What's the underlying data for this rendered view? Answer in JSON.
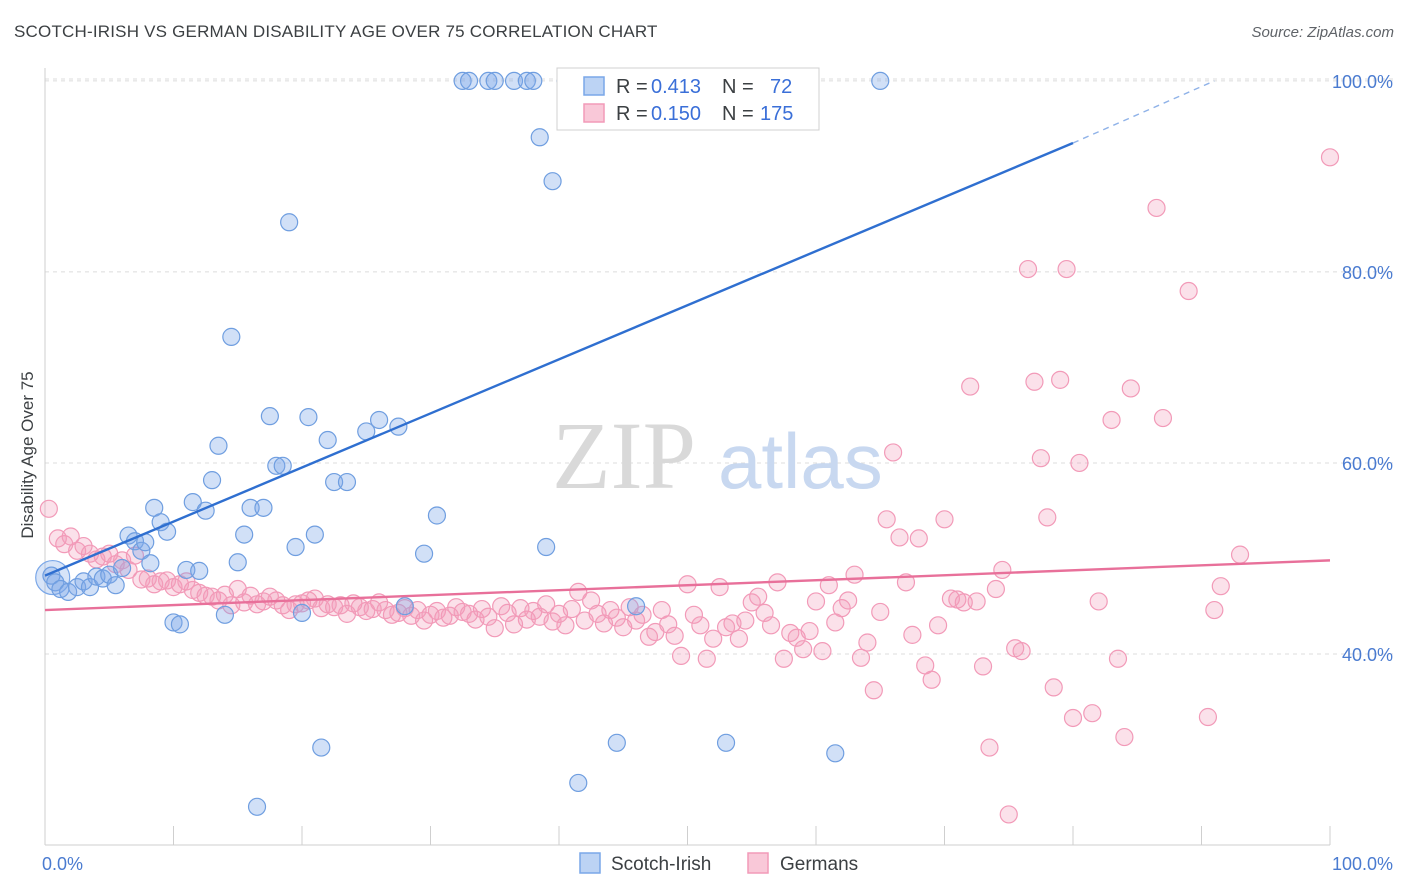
{
  "title": "SCOTCH-IRISH VS GERMAN DISABILITY AGE OVER 75 CORRELATION CHART",
  "source": "Source: ZipAtlas.com",
  "watermark": {
    "zip": "ZIP",
    "atlas": "atlas"
  },
  "colors": {
    "scotch_irish": "#7aa7e8",
    "scotch_irish_line": "#2f6fd0",
    "germans": "#f29ab8",
    "germans_line": "#e8709a",
    "tick": "#4a7bd0"
  },
  "chart_data": {
    "type": "scatter",
    "title": "SCOTCH-IRISH VS GERMAN DISABILITY AGE OVER 75 CORRELATION CHART",
    "xlabel": "",
    "ylabel": "Disability Age Over 75",
    "xlim": [
      0,
      100
    ],
    "ylim": [
      20,
      102
    ],
    "x_tick_labels": [
      "0.0%",
      "100.0%"
    ],
    "y_ticks": [
      40,
      60,
      80,
      100
    ],
    "y_tick_labels": [
      "40.0%",
      "60.0%",
      "80.0%",
      "100.0%"
    ],
    "grid": true,
    "legend_position": "top-center",
    "stats": [
      {
        "r_label": "R =",
        "r": "0.413",
        "n_label": "N =",
        "n": "72"
      },
      {
        "r_label": "R =",
        "r": "0.150",
        "n_label": "N =",
        "n": "175"
      }
    ],
    "series": [
      {
        "name": "Scotch-Irish",
        "trend": {
          "x0": 0,
          "y0": 48.2,
          "x1": 80,
          "y1": 93.5,
          "dash_to_x": 91,
          "dash_to_y": 100
        },
        "points": [
          [
            0.5,
            48.2
          ],
          [
            0.8,
            47.5
          ],
          [
            1.2,
            46.8
          ],
          [
            1.8,
            46.5
          ],
          [
            2.5,
            47.0
          ],
          [
            3.0,
            47.6
          ],
          [
            3.5,
            47.0
          ],
          [
            4.0,
            48.1
          ],
          [
            4.5,
            47.9
          ],
          [
            5.0,
            48.3
          ],
          [
            5.5,
            47.2
          ],
          [
            6.0,
            49.0
          ],
          [
            6.5,
            52.4
          ],
          [
            7.0,
            51.8
          ],
          [
            7.5,
            50.8
          ],
          [
            7.8,
            51.7
          ],
          [
            8.2,
            49.5
          ],
          [
            8.5,
            55.3
          ],
          [
            9.0,
            53.8
          ],
          [
            9.5,
            52.8
          ],
          [
            10.0,
            43.3
          ],
          [
            10.5,
            43.1
          ],
          [
            11.0,
            48.8
          ],
          [
            11.5,
            55.9
          ],
          [
            12.0,
            48.7
          ],
          [
            12.5,
            55.0
          ],
          [
            13.0,
            58.2
          ],
          [
            13.5,
            61.8
          ],
          [
            14.0,
            44.1
          ],
          [
            14.5,
            73.2
          ],
          [
            15.0,
            49.6
          ],
          [
            15.5,
            52.5
          ],
          [
            16.0,
            55.3
          ],
          [
            16.5,
            24.0
          ],
          [
            17.0,
            55.3
          ],
          [
            17.5,
            64.9
          ],
          [
            18.0,
            59.7
          ],
          [
            18.5,
            59.7
          ],
          [
            19.0,
            85.2
          ],
          [
            19.5,
            51.2
          ],
          [
            20.0,
            44.3
          ],
          [
            20.5,
            64.8
          ],
          [
            21.0,
            52.5
          ],
          [
            21.5,
            30.2
          ],
          [
            22.0,
            62.4
          ],
          [
            22.5,
            58.0
          ],
          [
            23.5,
            58.0
          ],
          [
            25.0,
            63.3
          ],
          [
            26.0,
            64.5
          ],
          [
            27.5,
            63.8
          ],
          [
            28.0,
            45.0
          ],
          [
            29.5,
            50.5
          ],
          [
            30.5,
            54.5
          ],
          [
            32.5,
            100
          ],
          [
            33.0,
            100
          ],
          [
            34.5,
            100
          ],
          [
            35.0,
            100
          ],
          [
            36.5,
            100
          ],
          [
            37.5,
            100
          ],
          [
            38.0,
            100
          ],
          [
            38.5,
            94.1
          ],
          [
            39.0,
            51.2
          ],
          [
            39.5,
            89.5
          ],
          [
            40.5,
            100
          ],
          [
            41.5,
            26.5
          ],
          [
            42.0,
            100
          ],
          [
            43.0,
            100
          ],
          [
            44.5,
            30.7
          ],
          [
            46.0,
            45.0
          ],
          [
            53.0,
            30.7
          ],
          [
            61.5,
            29.6
          ],
          [
            65.0,
            100
          ]
        ]
      },
      {
        "name": "Germans",
        "trend": {
          "x0": 0,
          "y0": 44.6,
          "x1": 100,
          "y1": 49.8
        },
        "points": [
          [
            0.3,
            55.2
          ],
          [
            1.0,
            52.1
          ],
          [
            1.5,
            51.5
          ],
          [
            2.0,
            52.3
          ],
          [
            2.5,
            50.8
          ],
          [
            3.0,
            51.3
          ],
          [
            3.5,
            50.5
          ],
          [
            4.0,
            49.9
          ],
          [
            4.5,
            50.2
          ],
          [
            5.0,
            50.5
          ],
          [
            5.5,
            49.4
          ],
          [
            6.0,
            49.8
          ],
          [
            6.5,
            48.8
          ],
          [
            7.0,
            50.3
          ],
          [
            7.5,
            47.8
          ],
          [
            8.0,
            47.9
          ],
          [
            8.5,
            47.3
          ],
          [
            9.0,
            47.6
          ],
          [
            9.5,
            47.7
          ],
          [
            10.0,
            47.0
          ],
          [
            10.5,
            47.3
          ],
          [
            11.0,
            47.6
          ],
          [
            11.5,
            46.7
          ],
          [
            12.0,
            46.4
          ],
          [
            12.5,
            46.1
          ],
          [
            13.0,
            46.0
          ],
          [
            13.5,
            45.6
          ],
          [
            14.0,
            46.2
          ],
          [
            14.5,
            45.1
          ],
          [
            15.0,
            46.8
          ],
          [
            15.5,
            45.4
          ],
          [
            16.0,
            46.1
          ],
          [
            16.5,
            45.2
          ],
          [
            17.0,
            45.5
          ],
          [
            17.5,
            46.0
          ],
          [
            18.0,
            45.6
          ],
          [
            18.5,
            45.1
          ],
          [
            19.0,
            44.6
          ],
          [
            19.5,
            45.2
          ],
          [
            20.0,
            45.3
          ],
          [
            20.5,
            45.6
          ],
          [
            21.0,
            45.8
          ],
          [
            21.5,
            44.8
          ],
          [
            22.0,
            45.2
          ],
          [
            22.5,
            44.9
          ],
          [
            23.0,
            45.1
          ],
          [
            23.5,
            44.2
          ],
          [
            24.0,
            45.3
          ],
          [
            24.5,
            44.9
          ],
          [
            25.0,
            44.5
          ],
          [
            25.5,
            44.7
          ],
          [
            26.0,
            45.4
          ],
          [
            26.5,
            44.6
          ],
          [
            27.0,
            44.1
          ],
          [
            27.5,
            44.3
          ],
          [
            28.0,
            44.8
          ],
          [
            28.5,
            44.0
          ],
          [
            29.0,
            44.6
          ],
          [
            29.5,
            43.5
          ],
          [
            30.0,
            44.1
          ],
          [
            30.5,
            44.5
          ],
          [
            31.0,
            43.8
          ],
          [
            31.5,
            44.0
          ],
          [
            32.0,
            44.9
          ],
          [
            32.5,
            44.4
          ],
          [
            33.0,
            44.2
          ],
          [
            33.5,
            43.6
          ],
          [
            34.0,
            44.7
          ],
          [
            34.5,
            43.9
          ],
          [
            35.0,
            42.7
          ],
          [
            35.5,
            45.0
          ],
          [
            36.0,
            44.3
          ],
          [
            36.5,
            43.1
          ],
          [
            37.0,
            44.8
          ],
          [
            37.5,
            43.6
          ],
          [
            38.0,
            44.5
          ],
          [
            38.5,
            43.9
          ],
          [
            39.0,
            45.2
          ],
          [
            39.5,
            43.4
          ],
          [
            40.0,
            44.2
          ],
          [
            40.5,
            43.0
          ],
          [
            41.0,
            44.7
          ],
          [
            41.5,
            46.5
          ],
          [
            42.0,
            43.5
          ],
          [
            42.5,
            45.6
          ],
          [
            43.0,
            44.2
          ],
          [
            43.5,
            43.2
          ],
          [
            44.0,
            44.6
          ],
          [
            44.5,
            43.8
          ],
          [
            45.0,
            42.8
          ],
          [
            45.5,
            44.9
          ],
          [
            46.0,
            43.5
          ],
          [
            46.5,
            44.1
          ],
          [
            47.0,
            41.8
          ],
          [
            47.5,
            42.3
          ],
          [
            48.0,
            44.6
          ],
          [
            48.5,
            43.1
          ],
          [
            49.0,
            41.9
          ],
          [
            49.5,
            39.8
          ],
          [
            50.0,
            47.3
          ],
          [
            50.5,
            44.1
          ],
          [
            51.0,
            43.0
          ],
          [
            51.5,
            39.5
          ],
          [
            52.0,
            41.6
          ],
          [
            52.5,
            47.0
          ],
          [
            53.0,
            42.8
          ],
          [
            53.5,
            43.2
          ],
          [
            54.0,
            41.6
          ],
          [
            54.5,
            43.5
          ],
          [
            55.0,
            45.4
          ],
          [
            55.5,
            46.0
          ],
          [
            56.0,
            44.3
          ],
          [
            56.5,
            43.0
          ],
          [
            57.0,
            47.5
          ],
          [
            57.5,
            39.5
          ],
          [
            58.0,
            42.2
          ],
          [
            58.5,
            41.7
          ],
          [
            59.0,
            40.5
          ],
          [
            59.5,
            42.4
          ],
          [
            60.0,
            45.5
          ],
          [
            60.5,
            40.3
          ],
          [
            61.0,
            47.2
          ],
          [
            61.5,
            43.3
          ],
          [
            62.0,
            44.8
          ],
          [
            62.5,
            45.6
          ],
          [
            63.0,
            48.3
          ],
          [
            63.5,
            39.6
          ],
          [
            64.0,
            41.2
          ],
          [
            64.5,
            36.2
          ],
          [
            65.0,
            44.4
          ],
          [
            65.5,
            54.1
          ],
          [
            66.0,
            61.1
          ],
          [
            66.5,
            52.2
          ],
          [
            67.0,
            47.5
          ],
          [
            67.5,
            42.0
          ],
          [
            68.0,
            52.1
          ],
          [
            68.5,
            38.8
          ],
          [
            69.0,
            37.3
          ],
          [
            69.5,
            43.0
          ],
          [
            70.0,
            54.1
          ],
          [
            70.5,
            45.8
          ],
          [
            71.0,
            45.7
          ],
          [
            71.5,
            45.4
          ],
          [
            72.0,
            68.0
          ],
          [
            72.5,
            45.5
          ],
          [
            73.0,
            38.7
          ],
          [
            73.5,
            30.2
          ],
          [
            74.0,
            46.8
          ],
          [
            74.5,
            48.8
          ],
          [
            75.0,
            23.2
          ],
          [
            75.5,
            40.6
          ],
          [
            76.0,
            40.3
          ],
          [
            76.5,
            80.3
          ],
          [
            77.0,
            68.5
          ],
          [
            77.5,
            60.5
          ],
          [
            78.0,
            54.3
          ],
          [
            78.5,
            36.5
          ],
          [
            79.0,
            68.7
          ],
          [
            79.5,
            80.3
          ],
          [
            80.0,
            33.3
          ],
          [
            80.5,
            60.0
          ],
          [
            81.5,
            33.8
          ],
          [
            82.0,
            45.5
          ],
          [
            83.0,
            64.5
          ],
          [
            83.5,
            39.5
          ],
          [
            84.0,
            31.3
          ],
          [
            84.5,
            67.8
          ],
          [
            86.5,
            86.7
          ],
          [
            87.0,
            64.7
          ],
          [
            89.0,
            78.0
          ],
          [
            90.5,
            33.4
          ],
          [
            91.0,
            44.6
          ],
          [
            91.5,
            47.1
          ],
          [
            93.0,
            50.4
          ],
          [
            100.0,
            92.0
          ]
        ]
      }
    ]
  },
  "legend_bottom": [
    "Scotch-Irish",
    "Germans"
  ]
}
